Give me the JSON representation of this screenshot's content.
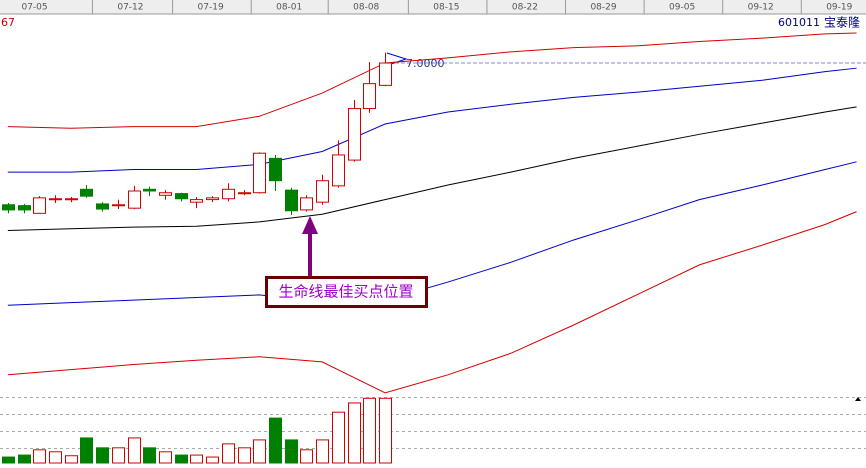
{
  "chart_data": {
    "type": "candlestick",
    "corner_label": "67",
    "stock_code": "601011",
    "stock_name": "宝泰隆",
    "xlim": [
      -0.5,
      54.6
    ],
    "ylim": [
      3.1,
      7.6
    ],
    "xticks": [
      {
        "value": 1.7,
        "label": "07-05"
      },
      {
        "value": 7.8,
        "label": "07-12"
      },
      {
        "value": 12.9,
        "label": "07-19"
      },
      {
        "value": 17.9,
        "label": "08-01"
      },
      {
        "value": 22.8,
        "label": "08-08"
      },
      {
        "value": 27.9,
        "label": "08-15"
      },
      {
        "value": 32.9,
        "label": "08-22"
      },
      {
        "value": 37.9,
        "label": "08-29"
      },
      {
        "value": 42.9,
        "label": "09-05"
      },
      {
        "value": 47.9,
        "label": "09-12"
      },
      {
        "value": 52.9,
        "label": "09-19"
      }
    ],
    "up_color": "#d40000",
    "down_color": "#008000",
    "open": [
      5.35,
      5.34,
      5.25,
      5.41,
      5.41,
      5.53,
      5.36,
      5.34,
      5.31,
      5.53,
      5.46,
      5.48,
      5.38,
      5.41,
      5.42,
      5.49,
      5.49,
      5.89,
      5.52,
      5.29,
      5.38,
      5.57,
      5.87,
      6.47,
      6.74
    ],
    "high": [
      5.37,
      5.36,
      5.45,
      5.46,
      5.44,
      5.58,
      5.38,
      5.41,
      5.57,
      5.56,
      5.52,
      5.49,
      5.44,
      5.45,
      5.6,
      5.52,
      5.96,
      5.93,
      5.55,
      5.46,
      5.7,
      6.1,
      6.57,
      7.01,
      7.12
    ],
    "low": [
      5.25,
      5.25,
      5.25,
      5.37,
      5.38,
      5.43,
      5.27,
      5.3,
      5.3,
      5.45,
      5.41,
      5.39,
      5.31,
      5.38,
      5.39,
      5.46,
      5.48,
      5.51,
      5.23,
      5.27,
      5.35,
      5.55,
      5.85,
      6.42,
      6.73
    ],
    "close": [
      5.29,
      5.29,
      5.43,
      5.42,
      5.42,
      5.45,
      5.3,
      5.35,
      5.51,
      5.51,
      5.49,
      5.42,
      5.41,
      5.43,
      5.53,
      5.49,
      5.95,
      5.63,
      5.28,
      5.43,
      5.63,
      5.93,
      6.47,
      6.76,
      7.0
    ],
    "bands": [
      {
        "color": "#d40000",
        "x": [
          0,
          4,
          8,
          12,
          16,
          20,
          24,
          28,
          32,
          36,
          40,
          44,
          48,
          52,
          54
        ],
        "values": [
          6.26,
          6.24,
          6.26,
          6.26,
          6.38,
          6.65,
          7.0,
          7.06,
          7.13,
          7.18,
          7.2,
          7.25,
          7.29,
          7.34,
          7.35
        ]
      },
      {
        "color": "#0000c8",
        "x": [
          0,
          4,
          8,
          12,
          16,
          20,
          24,
          28,
          32,
          36,
          40,
          44,
          48,
          52,
          54
        ],
        "values": [
          5.73,
          5.73,
          5.76,
          5.76,
          5.82,
          5.97,
          6.29,
          6.43,
          6.52,
          6.6,
          6.66,
          6.73,
          6.8,
          6.9,
          6.94
        ]
      },
      {
        "color": "#000000",
        "x": [
          0,
          4,
          8,
          12,
          16,
          20,
          24,
          28,
          32,
          36,
          40,
          44,
          48,
          52,
          54
        ],
        "values": [
          5.05,
          5.07,
          5.09,
          5.1,
          5.15,
          5.24,
          5.41,
          5.58,
          5.73,
          5.89,
          6.03,
          6.17,
          6.3,
          6.43,
          6.49
        ]
      },
      {
        "color": "#0000c8",
        "x": [
          0,
          4,
          8,
          12,
          16,
          20,
          24,
          28,
          32,
          36,
          40,
          44,
          48,
          52,
          54
        ],
        "values": [
          4.18,
          4.21,
          4.24,
          4.27,
          4.3,
          4.22,
          4.24,
          4.45,
          4.68,
          4.94,
          5.17,
          5.41,
          5.58,
          5.76,
          5.85
        ]
      },
      {
        "color": "#d40000",
        "x": [
          0,
          4,
          8,
          12,
          16,
          20,
          24,
          28,
          32,
          36,
          40,
          44,
          48,
          52,
          54
        ],
        "values": [
          3.37,
          3.43,
          3.49,
          3.54,
          3.58,
          3.52,
          3.16,
          3.37,
          3.62,
          3.95,
          4.3,
          4.65,
          4.88,
          5.12,
          5.27
        ]
      }
    ],
    "volume": {
      "ylim": [
        0,
        100
      ],
      "values": [
        9,
        12,
        20,
        17,
        11,
        38,
        23,
        23,
        38,
        23,
        17,
        12,
        12,
        9,
        29,
        23,
        35,
        68,
        35,
        20,
        35,
        77,
        91,
        98,
        98
      ]
    },
    "price_line": {
      "value": 7,
      "label": "7.0000"
    },
    "annotation": "生命线最佳买点位置"
  }
}
